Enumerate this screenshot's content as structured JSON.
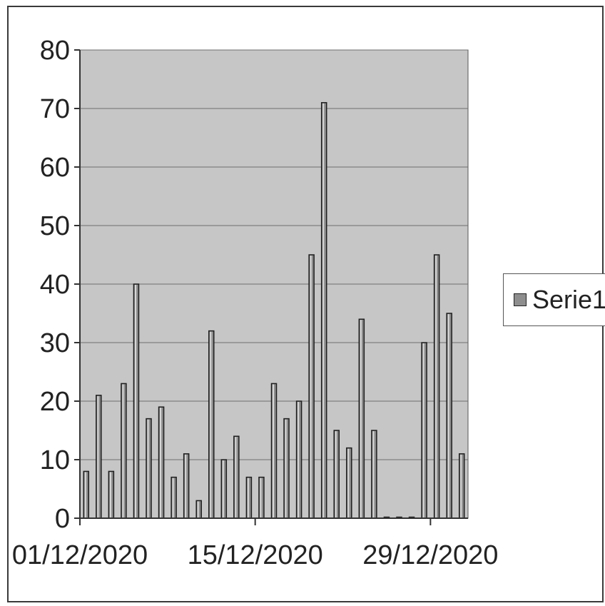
{
  "chart_data": {
    "type": "bar",
    "title": "",
    "xlabel": "",
    "ylabel": "",
    "ylim": [
      0,
      80
    ],
    "yticks": [
      "0",
      "10",
      "20",
      "30",
      "40",
      "50",
      "60",
      "70",
      "80"
    ],
    "x_tick_labels": [
      "01/12/2020",
      "15/12/2020",
      "29/12/2020"
    ],
    "grid": "horizontal",
    "legend_position": "right",
    "categories": [
      "01/12/2020",
      "02/12/2020",
      "03/12/2020",
      "04/12/2020",
      "05/12/2020",
      "06/12/2020",
      "07/12/2020",
      "08/12/2020",
      "09/12/2020",
      "10/12/2020",
      "11/12/2020",
      "12/12/2020",
      "13/12/2020",
      "14/12/2020",
      "15/12/2020",
      "16/12/2020",
      "17/12/2020",
      "18/12/2020",
      "19/12/2020",
      "20/12/2020",
      "21/12/2020",
      "22/12/2020",
      "23/12/2020",
      "24/12/2020",
      "25/12/2020",
      "26/12/2020",
      "27/12/2020",
      "28/12/2020",
      "29/12/2020",
      "30/12/2020",
      "31/12/2020"
    ],
    "series": [
      {
        "name": "Serie1",
        "color": "#8e8e8e",
        "values": [
          8,
          21,
          8,
          23,
          40,
          17,
          19,
          7,
          11,
          3,
          32,
          10,
          14,
          7,
          7,
          23,
          17,
          20,
          45,
          71,
          15,
          12,
          34,
          15,
          0,
          0,
          0,
          30,
          45,
          35,
          11
        ]
      }
    ],
    "colors": {
      "plot_background": "#c6c6c6",
      "bar_fill": "#8e8e8e",
      "bar_edge": "#1e1e1e",
      "gridline": "#6f6f6f"
    }
  }
}
